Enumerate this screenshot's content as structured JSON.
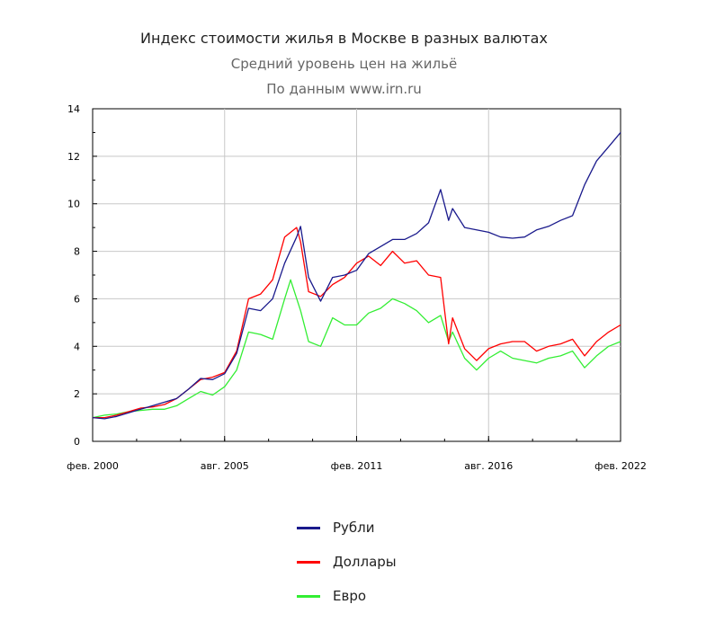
{
  "title": "Индекс стоимости жилья в Москве в разных валютах",
  "subtitle": "Средний уровень цен на жильё",
  "source": "По данным www.irn.ru",
  "chart_data": {
    "type": "line",
    "x_ticks": [
      "фев. 2000",
      "авг. 2005",
      "фев. 2011",
      "авг. 2016",
      "фев. 2022"
    ],
    "ylim": [
      0,
      14
    ],
    "y_ticks": [
      "0",
      "2",
      "4",
      "6",
      "8",
      "10",
      "12",
      "14"
    ],
    "grid": true,
    "legend_position": "bottom",
    "series": [
      {
        "name": "Рубли",
        "color": "#1a1a8c",
        "points": [
          [
            "2000-02",
            1.0
          ],
          [
            "2000-08",
            0.95
          ],
          [
            "2001-02",
            1.05
          ],
          [
            "2001-08",
            1.2
          ],
          [
            "2002-02",
            1.35
          ],
          [
            "2002-08",
            1.5
          ],
          [
            "2003-02",
            1.65
          ],
          [
            "2003-08",
            1.8
          ],
          [
            "2004-02",
            2.2
          ],
          [
            "2004-08",
            2.65
          ],
          [
            "2005-02",
            2.6
          ],
          [
            "2005-08",
            2.85
          ],
          [
            "2006-02",
            3.7
          ],
          [
            "2006-08",
            5.6
          ],
          [
            "2007-02",
            5.5
          ],
          [
            "2007-08",
            6.0
          ],
          [
            "2008-02",
            7.5
          ],
          [
            "2008-08",
            8.6
          ],
          [
            "2008-10",
            9.05
          ],
          [
            "2009-02",
            6.9
          ],
          [
            "2009-08",
            5.9
          ],
          [
            "2010-02",
            6.9
          ],
          [
            "2010-08",
            7.0
          ],
          [
            "2011-02",
            7.2
          ],
          [
            "2011-08",
            7.9
          ],
          [
            "2012-02",
            8.2
          ],
          [
            "2012-08",
            8.5
          ],
          [
            "2013-02",
            8.5
          ],
          [
            "2013-08",
            8.75
          ],
          [
            "2014-02",
            9.2
          ],
          [
            "2014-08",
            10.6
          ],
          [
            "2014-12",
            9.3
          ],
          [
            "2015-02",
            9.8
          ],
          [
            "2015-08",
            9.0
          ],
          [
            "2016-02",
            8.9
          ],
          [
            "2016-08",
            8.8
          ],
          [
            "2017-02",
            8.6
          ],
          [
            "2017-08",
            8.55
          ],
          [
            "2018-02",
            8.6
          ],
          [
            "2018-08",
            8.9
          ],
          [
            "2019-02",
            9.05
          ],
          [
            "2019-08",
            9.3
          ],
          [
            "2020-02",
            9.5
          ],
          [
            "2020-08",
            10.8
          ],
          [
            "2021-02",
            11.8
          ],
          [
            "2021-08",
            12.4
          ],
          [
            "2022-02",
            13.0
          ]
        ]
      },
      {
        "name": "Доллары",
        "color": "#ff0000",
        "points": [
          [
            "2000-02",
            1.0
          ],
          [
            "2000-08",
            1.0
          ],
          [
            "2001-02",
            1.1
          ],
          [
            "2001-08",
            1.25
          ],
          [
            "2002-02",
            1.4
          ],
          [
            "2002-08",
            1.45
          ],
          [
            "2003-02",
            1.55
          ],
          [
            "2003-08",
            1.8
          ],
          [
            "2004-02",
            2.2
          ],
          [
            "2004-08",
            2.6
          ],
          [
            "2005-02",
            2.7
          ],
          [
            "2005-08",
            2.9
          ],
          [
            "2006-02",
            3.8
          ],
          [
            "2006-08",
            6.0
          ],
          [
            "2007-02",
            6.2
          ],
          [
            "2007-08",
            6.8
          ],
          [
            "2008-02",
            8.6
          ],
          [
            "2008-08",
            9.0
          ],
          [
            "2008-10",
            8.4
          ],
          [
            "2009-02",
            6.3
          ],
          [
            "2009-08",
            6.1
          ],
          [
            "2010-02",
            6.6
          ],
          [
            "2010-08",
            6.9
          ],
          [
            "2011-02",
            7.5
          ],
          [
            "2011-08",
            7.8
          ],
          [
            "2012-02",
            7.4
          ],
          [
            "2012-08",
            8.0
          ],
          [
            "2013-02",
            7.5
          ],
          [
            "2013-08",
            7.6
          ],
          [
            "2014-02",
            7.0
          ],
          [
            "2014-08",
            6.9
          ],
          [
            "2014-12",
            4.1
          ],
          [
            "2015-02",
            5.2
          ],
          [
            "2015-08",
            3.9
          ],
          [
            "2016-02",
            3.4
          ],
          [
            "2016-08",
            3.9
          ],
          [
            "2017-02",
            4.1
          ],
          [
            "2017-08",
            4.2
          ],
          [
            "2018-02",
            4.2
          ],
          [
            "2018-08",
            3.8
          ],
          [
            "2019-02",
            4.0
          ],
          [
            "2019-08",
            4.1
          ],
          [
            "2020-02",
            4.3
          ],
          [
            "2020-08",
            3.6
          ],
          [
            "2021-02",
            4.2
          ],
          [
            "2021-08",
            4.6
          ],
          [
            "2022-02",
            4.9
          ]
        ]
      },
      {
        "name": "Евро",
        "color": "#33ee33",
        "points": [
          [
            "2000-02",
            1.0
          ],
          [
            "2000-08",
            1.1
          ],
          [
            "2001-02",
            1.15
          ],
          [
            "2001-08",
            1.25
          ],
          [
            "2002-02",
            1.3
          ],
          [
            "2002-08",
            1.35
          ],
          [
            "2003-02",
            1.35
          ],
          [
            "2003-08",
            1.5
          ],
          [
            "2004-02",
            1.8
          ],
          [
            "2004-08",
            2.1
          ],
          [
            "2005-02",
            1.95
          ],
          [
            "2005-08",
            2.3
          ],
          [
            "2006-02",
            3.0
          ],
          [
            "2006-08",
            4.6
          ],
          [
            "2007-02",
            4.5
          ],
          [
            "2007-08",
            4.3
          ],
          [
            "2008-02",
            6.0
          ],
          [
            "2008-05",
            6.8
          ],
          [
            "2008-10",
            5.5
          ],
          [
            "2009-02",
            4.2
          ],
          [
            "2009-08",
            4.0
          ],
          [
            "2010-02",
            5.2
          ],
          [
            "2010-08",
            4.9
          ],
          [
            "2011-02",
            4.9
          ],
          [
            "2011-08",
            5.4
          ],
          [
            "2012-02",
            5.6
          ],
          [
            "2012-08",
            6.0
          ],
          [
            "2013-02",
            5.8
          ],
          [
            "2013-08",
            5.5
          ],
          [
            "2014-02",
            5.0
          ],
          [
            "2014-08",
            5.3
          ],
          [
            "2014-12",
            4.2
          ],
          [
            "2015-02",
            4.6
          ],
          [
            "2015-08",
            3.5
          ],
          [
            "2016-02",
            3.0
          ],
          [
            "2016-08",
            3.5
          ],
          [
            "2017-02",
            3.8
          ],
          [
            "2017-08",
            3.5
          ],
          [
            "2018-02",
            3.4
          ],
          [
            "2018-08",
            3.3
          ],
          [
            "2019-02",
            3.5
          ],
          [
            "2019-08",
            3.6
          ],
          [
            "2020-02",
            3.8
          ],
          [
            "2020-08",
            3.1
          ],
          [
            "2021-02",
            3.6
          ],
          [
            "2021-08",
            4.0
          ],
          [
            "2022-02",
            4.2
          ]
        ]
      }
    ]
  }
}
